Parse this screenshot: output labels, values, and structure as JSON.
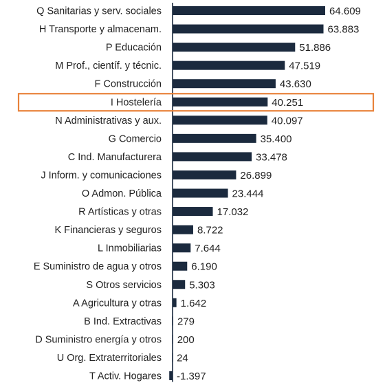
{
  "chart_data": {
    "type": "bar",
    "orientation": "horizontal",
    "categories": [
      "Q Sanitarias y serv. sociales",
      "H Transporte y almacenam.",
      "P Educación",
      "M Prof., científ. y técnic.",
      "F Construcción",
      "I Hostelería",
      "N Administrativas y  aux.",
      "G Comercio",
      "C Ind. Manufacturera",
      "J Inform. y comunicaciones",
      "O Admon. Pública",
      "R Artísticas y otras",
      "K Financieras y seguros",
      "L Inmobiliarias",
      "E Suministro de agua y otros",
      "S Otros servicios",
      "A Agricultura y otras",
      "B Ind. Extractivas",
      "D Suministro energía y otros",
      "U Org. Extraterritoriales",
      "T Activ. Hogares"
    ],
    "values": [
      64609,
      63883,
      51886,
      47519,
      43630,
      40251,
      40097,
      35400,
      33478,
      26899,
      23444,
      17032,
      8722,
      7644,
      6190,
      5303,
      1642,
      279,
      200,
      24,
      -1397
    ],
    "value_labels": [
      "64.609",
      "63.883",
      "51.886",
      "47.519",
      "43.630",
      "40.251",
      "40.097",
      "35.400",
      "33.478",
      "26.899",
      "23.444",
      "17.032",
      "8.722",
      "7.644",
      "6.190",
      "5.303",
      "1.642",
      "279",
      "200",
      "24",
      "-1.397"
    ],
    "highlighted_category": "I Hostelería",
    "colors": {
      "bar": "#1b2a3e",
      "negative_label": "#e0201b",
      "highlight_box": "#e8823a",
      "text": "#222222",
      "axis": "#1b2a3e"
    },
    "title": "",
    "xlabel": "",
    "ylabel": "",
    "grid": false
  }
}
